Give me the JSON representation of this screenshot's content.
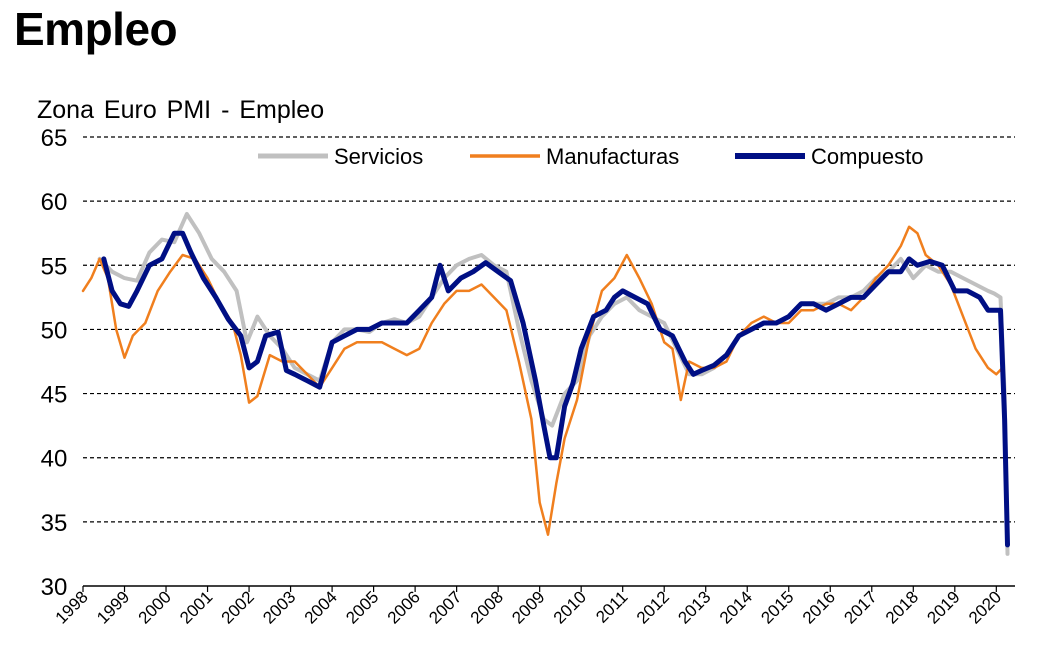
{
  "page_title": "Empleo",
  "chart_data": {
    "type": "line",
    "title": "Zona Euro PMI - Empleo",
    "xlabel": "",
    "ylabel": "",
    "ylim": [
      30,
      65
    ],
    "xlim": [
      1998.0,
      2020.45
    ],
    "yticks": [
      30,
      35,
      40,
      45,
      50,
      55,
      60,
      65
    ],
    "xticks": [
      "1998",
      "1999",
      "2000",
      "2001",
      "2002",
      "2003",
      "2004",
      "2005",
      "2006",
      "2007",
      "2008",
      "2009",
      "2010",
      "2011",
      "2012",
      "2013",
      "2014",
      "2015",
      "2016",
      "2017",
      "2018",
      "2019",
      "2020"
    ],
    "grid": "horizontal dashed",
    "legend_position": "top",
    "series": [
      {
        "name": "Servicios",
        "color": "#c0c0c0",
        "width": 4,
        "x": [
          1998.4,
          1998.7,
          1999.0,
          1999.3,
          1999.6,
          1999.9,
          2000.2,
          2000.5,
          2000.8,
          2001.1,
          2001.4,
          2001.7,
          2001.95,
          2002.2,
          2002.5,
          2002.8,
          2003.1,
          2003.4,
          2003.7,
          2004.0,
          2004.3,
          2004.6,
          2004.9,
          2005.2,
          2005.5,
          2005.8,
          2006.1,
          2006.4,
          2006.7,
          2007.0,
          2007.3,
          2007.6,
          2007.9,
          2008.2,
          2008.5,
          2008.8,
          2009.1,
          2009.3,
          2009.6,
          2009.9,
          2010.2,
          2010.5,
          2010.8,
          2011.1,
          2011.4,
          2011.7,
          2012.0,
          2012.3,
          2012.6,
          2012.9,
          2013.2,
          2013.5,
          2013.8,
          2014.1,
          2014.4,
          2014.7,
          2015.0,
          2015.3,
          2015.6,
          2015.9,
          2016.2,
          2016.5,
          2016.8,
          2017.1,
          2017.4,
          2017.7,
          2018.0,
          2018.3,
          2018.6,
          2018.9,
          2019.2,
          2019.5,
          2019.8,
          2019.95,
          2020.1,
          2020.2,
          2020.27
        ],
        "values": [
          55.5,
          54.5,
          54.0,
          53.8,
          56.0,
          57.0,
          56.8,
          59.0,
          57.5,
          55.5,
          54.5,
          53.0,
          49.0,
          51.0,
          49.5,
          48.5,
          47.0,
          46.5,
          46.0,
          49.0,
          50.0,
          50.0,
          49.8,
          50.5,
          50.8,
          50.5,
          51.0,
          52.5,
          54.0,
          55.0,
          55.5,
          55.8,
          55.0,
          54.5,
          50.0,
          46.0,
          43.0,
          42.5,
          45.0,
          46.0,
          49.5,
          51.0,
          52.0,
          52.5,
          51.5,
          51.0,
          50.5,
          48.5,
          46.5,
          46.5,
          47.0,
          48.0,
          49.5,
          50.0,
          50.5,
          50.5,
          51.0,
          52.0,
          52.0,
          52.0,
          52.5,
          52.5,
          53.0,
          54.0,
          54.5,
          55.5,
          54.0,
          55.0,
          54.5,
          54.5,
          54.0,
          53.5,
          53.0,
          52.8,
          52.5,
          45.0,
          32.5
        ]
      },
      {
        "name": "Manufacturas",
        "color": "#f07f1e",
        "width": 2.5,
        "x": [
          1998.0,
          1998.2,
          1998.4,
          1998.6,
          1998.8,
          1999.0,
          1999.2,
          1999.5,
          1999.8,
          2000.1,
          2000.4,
          2000.7,
          2001.0,
          2001.3,
          2001.6,
          2001.8,
          2002.0,
          2002.2,
          2002.5,
          2002.8,
          2003.1,
          2003.4,
          2003.7,
          2004.0,
          2004.3,
          2004.6,
          2004.9,
          2005.2,
          2005.5,
          2005.8,
          2006.1,
          2006.4,
          2006.7,
          2007.0,
          2007.3,
          2007.6,
          2007.9,
          2008.2,
          2008.5,
          2008.8,
          2009.0,
          2009.2,
          2009.4,
          2009.6,
          2009.9,
          2010.2,
          2010.5,
          2010.8,
          2011.1,
          2011.4,
          2011.7,
          2012.0,
          2012.2,
          2012.4,
          2012.6,
          2012.9,
          2013.2,
          2013.5,
          2013.8,
          2014.1,
          2014.4,
          2014.7,
          2015.0,
          2015.3,
          2015.6,
          2015.9,
          2016.2,
          2016.5,
          2016.8,
          2017.1,
          2017.4,
          2017.7,
          2017.9,
          2018.1,
          2018.3,
          2018.6,
          2018.9,
          2019.2,
          2019.5,
          2019.8,
          2020.0,
          2020.15
        ],
        "values": [
          53.0,
          54.0,
          55.5,
          54.0,
          50.0,
          47.8,
          49.5,
          50.5,
          53.0,
          54.5,
          55.8,
          55.5,
          54.0,
          52.0,
          50.5,
          48.0,
          44.3,
          44.8,
          48.0,
          47.5,
          47.5,
          46.5,
          45.5,
          47.0,
          48.5,
          49.0,
          49.0,
          49.0,
          48.5,
          48.0,
          48.5,
          50.5,
          52.0,
          53.0,
          53.0,
          53.5,
          52.5,
          51.5,
          47.5,
          43.0,
          36.5,
          34.0,
          38.0,
          41.5,
          44.5,
          49.5,
          53.0,
          54.0,
          55.8,
          54.0,
          52.0,
          49.0,
          48.5,
          44.5,
          47.5,
          47.0,
          47.0,
          47.5,
          49.5,
          50.5,
          51.0,
          50.5,
          50.5,
          51.5,
          51.5,
          52.0,
          52.0,
          51.5,
          52.5,
          54.0,
          55.0,
          56.5,
          58.0,
          57.5,
          55.8,
          55.0,
          53.5,
          51.0,
          48.5,
          47.0,
          46.5,
          47.0
        ]
      },
      {
        "name": "Compuesto",
        "color": "#000f84",
        "width": 5,
        "x": [
          1998.5,
          1998.7,
          1998.9,
          1999.1,
          1999.3,
          1999.6,
          1999.9,
          2000.2,
          2000.4,
          2000.6,
          2000.9,
          2001.2,
          2001.5,
          2001.8,
          2002.0,
          2002.2,
          2002.4,
          2002.7,
          2002.9,
          2003.1,
          2003.4,
          2003.7,
          2004.0,
          2004.3,
          2004.6,
          2004.9,
          2005.2,
          2005.5,
          2005.8,
          2006.1,
          2006.4,
          2006.6,
          2006.8,
          2007.1,
          2007.4,
          2007.7,
          2008.0,
          2008.3,
          2008.6,
          2008.9,
          2009.1,
          2009.25,
          2009.4,
          2009.6,
          2009.8,
          2010.0,
          2010.3,
          2010.6,
          2010.8,
          2011.0,
          2011.3,
          2011.6,
          2011.9,
          2012.2,
          2012.5,
          2012.7,
          2012.9,
          2013.2,
          2013.5,
          2013.8,
          2014.1,
          2014.4,
          2014.7,
          2015.0,
          2015.3,
          2015.6,
          2015.9,
          2016.2,
          2016.5,
          2016.8,
          2017.1,
          2017.4,
          2017.7,
          2017.9,
          2018.1,
          2018.4,
          2018.7,
          2019.0,
          2019.3,
          2019.6,
          2019.8,
          2020.0,
          2020.1,
          2020.2,
          2020.27
        ],
        "values": [
          55.5,
          53.0,
          52.0,
          51.8,
          53.0,
          55.0,
          55.5,
          57.5,
          57.5,
          56.0,
          54.0,
          52.5,
          50.8,
          49.5,
          47.0,
          47.5,
          49.5,
          49.8,
          46.8,
          46.5,
          46.0,
          45.5,
          49.0,
          49.5,
          50.0,
          50.0,
          50.5,
          50.5,
          50.5,
          51.5,
          52.5,
          55.0,
          53.0,
          54.0,
          54.5,
          55.2,
          54.5,
          53.8,
          50.5,
          46.0,
          42.5,
          40.0,
          40.0,
          44.0,
          45.8,
          48.5,
          51.0,
          51.5,
          52.5,
          53.0,
          52.5,
          52.0,
          50.0,
          49.5,
          47.5,
          46.5,
          46.8,
          47.2,
          48.0,
          49.5,
          50.0,
          50.5,
          50.5,
          51.0,
          52.0,
          52.0,
          51.5,
          52.0,
          52.5,
          52.5,
          53.5,
          54.5,
          54.5,
          55.5,
          55.0,
          55.3,
          55.0,
          53.0,
          53.0,
          52.5,
          51.5,
          51.5,
          51.5,
          43.0,
          33.2
        ]
      }
    ]
  }
}
